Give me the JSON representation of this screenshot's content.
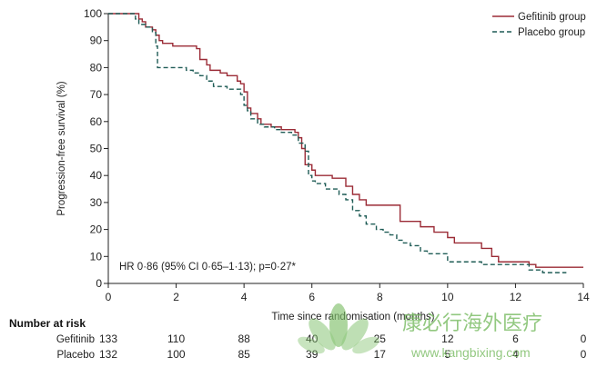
{
  "chart_data": {
    "type": "line",
    "subtype": "kaplan-meier step curves",
    "xlabel": "Time since randomisation (months)",
    "ylabel": "Progression-free survival (%)",
    "xlim": [
      0,
      14
    ],
    "ylim": [
      0,
      100
    ],
    "x_ticks": [
      0,
      2,
      4,
      6,
      8,
      10,
      12,
      14
    ],
    "y_ticks": [
      0,
      10,
      20,
      30,
      40,
      50,
      60,
      70,
      80,
      90,
      100
    ],
    "grid": false,
    "legend_position": "top-right",
    "annotation": "HR 0·86 (95% CI 0·65–1·13); p=0·27*",
    "series": [
      {
        "name": "Gefitinib group",
        "style": "solid",
        "color": "#9b2b36",
        "points": [
          [
            0,
            100
          ],
          [
            0.8,
            100
          ],
          [
            0.9,
            98
          ],
          [
            1.0,
            97
          ],
          [
            1.1,
            95
          ],
          [
            1.3,
            94
          ],
          [
            1.4,
            92
          ],
          [
            1.5,
            90
          ],
          [
            1.6,
            89
          ],
          [
            1.9,
            88
          ],
          [
            2.6,
            87
          ],
          [
            2.7,
            83
          ],
          [
            2.9,
            81
          ],
          [
            3.0,
            79
          ],
          [
            3.3,
            78
          ],
          [
            3.5,
            77
          ],
          [
            3.8,
            75
          ],
          [
            3.9,
            74
          ],
          [
            4.0,
            71
          ],
          [
            4.1,
            65
          ],
          [
            4.2,
            63
          ],
          [
            4.4,
            61
          ],
          [
            4.5,
            59
          ],
          [
            4.8,
            58
          ],
          [
            5.1,
            57
          ],
          [
            5.5,
            56
          ],
          [
            5.6,
            54
          ],
          [
            5.7,
            50
          ],
          [
            5.8,
            44
          ],
          [
            6.0,
            42
          ],
          [
            6.1,
            40
          ],
          [
            6.6,
            39
          ],
          [
            7.0,
            36
          ],
          [
            7.2,
            33
          ],
          [
            7.4,
            31
          ],
          [
            7.6,
            29
          ],
          [
            8.4,
            29
          ],
          [
            8.6,
            23
          ],
          [
            9.2,
            21
          ],
          [
            9.6,
            19
          ],
          [
            10.0,
            17
          ],
          [
            10.2,
            15
          ],
          [
            11.0,
            13
          ],
          [
            11.3,
            10
          ],
          [
            11.5,
            8
          ],
          [
            12.4,
            7
          ],
          [
            12.6,
            6
          ],
          [
            14.0,
            6
          ]
        ]
      },
      {
        "name": "Placebo group",
        "style": "dashed",
        "color": "#1f5c56",
        "points": [
          [
            0,
            100
          ],
          [
            0.7,
            100
          ],
          [
            0.8,
            98
          ],
          [
            0.9,
            96
          ],
          [
            1.1,
            95
          ],
          [
            1.3,
            93
          ],
          [
            1.4,
            88
          ],
          [
            1.45,
            80
          ],
          [
            2.3,
            79
          ],
          [
            2.5,
            78
          ],
          [
            2.7,
            77
          ],
          [
            2.9,
            75
          ],
          [
            3.1,
            73
          ],
          [
            3.5,
            72
          ],
          [
            3.9,
            70
          ],
          [
            4.0,
            66
          ],
          [
            4.1,
            64
          ],
          [
            4.2,
            61
          ],
          [
            4.4,
            59
          ],
          [
            4.6,
            58
          ],
          [
            4.9,
            57
          ],
          [
            5.1,
            56
          ],
          [
            5.4,
            55
          ],
          [
            5.6,
            52
          ],
          [
            5.8,
            49
          ],
          [
            5.9,
            40
          ],
          [
            6.0,
            38
          ],
          [
            6.1,
            37
          ],
          [
            6.4,
            35
          ],
          [
            6.8,
            33
          ],
          [
            7.0,
            31
          ],
          [
            7.2,
            27
          ],
          [
            7.4,
            25
          ],
          [
            7.6,
            22
          ],
          [
            7.9,
            20
          ],
          [
            8.1,
            19
          ],
          [
            8.3,
            18
          ],
          [
            8.5,
            16
          ],
          [
            8.7,
            15
          ],
          [
            8.9,
            14
          ],
          [
            9.2,
            12
          ],
          [
            9.4,
            11
          ],
          [
            10.0,
            8
          ],
          [
            10.6,
            8
          ],
          [
            11.0,
            7
          ],
          [
            12.3,
            7
          ],
          [
            12.4,
            5
          ],
          [
            12.8,
            4
          ],
          [
            13.5,
            4
          ]
        ]
      }
    ]
  },
  "risk_table": {
    "title": "Number at risk",
    "times": [
      0,
      2,
      4,
      6,
      8,
      10,
      12,
      14
    ],
    "rows": [
      {
        "label": "Gefitinib",
        "values": [
          "133",
          "110",
          "88",
          "40",
          "25",
          "12",
          "6",
          "0"
        ]
      },
      {
        "label": "Placebo",
        "values": [
          "132",
          "100",
          "85",
          "39",
          "17",
          "5",
          "4",
          "0"
        ]
      }
    ]
  },
  "watermark": {
    "text_cn": "康必行海外医疗",
    "url": "www.kangbixing.com",
    "color": "#7fbf6a"
  }
}
